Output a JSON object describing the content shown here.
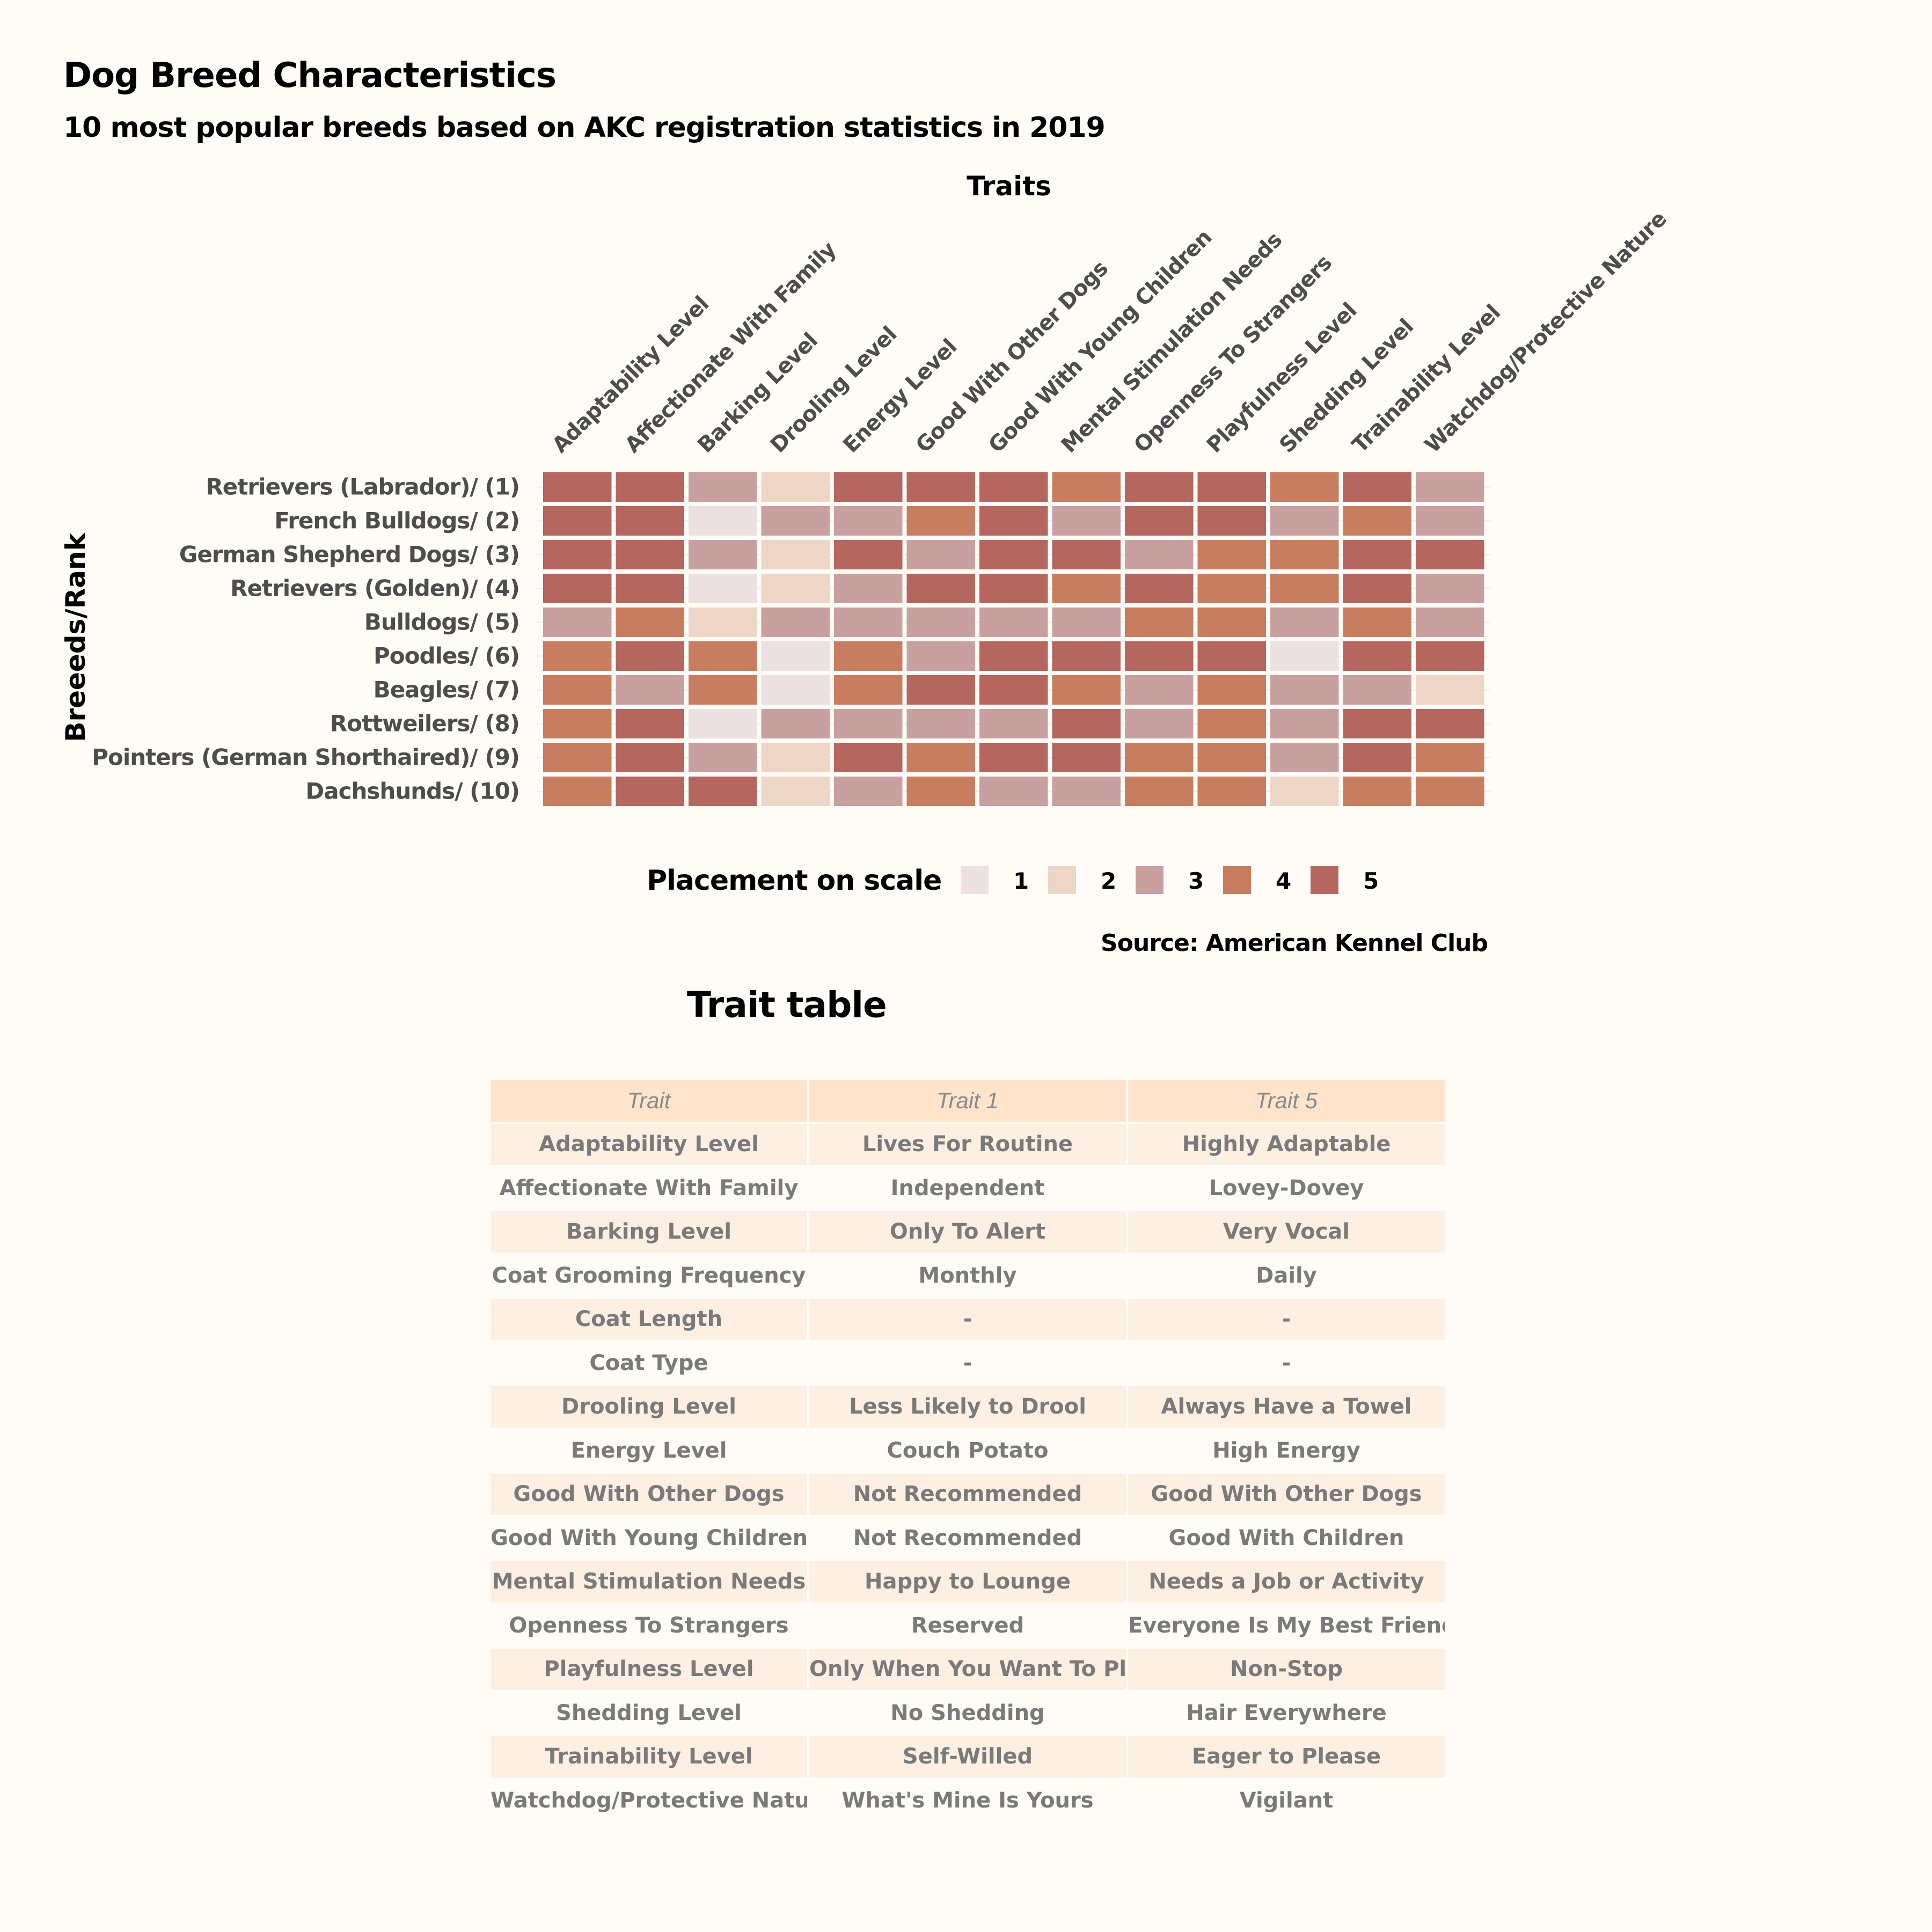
{
  "title": "Dog Breed Characteristics",
  "subtitle": "10 most popular breeds based on AKC registration statistics in 2019",
  "chart_data": {
    "type": "heatmap",
    "x_title": "Traits",
    "y_title": "Breeeds/Rank",
    "x": [
      "Adaptability Level",
      "Affectionate With Family",
      "Barking Level",
      "Drooling Level",
      "Energy Level",
      "Good With Other Dogs",
      "Good With Young Children",
      "Mental Stimulation Needs",
      "Openness To Strangers",
      "Playfulness Level",
      "Shedding Level",
      "Trainability Level",
      "Watchdog/Protective Nature"
    ],
    "y": [
      "Retrievers (Labrador)/ (1)",
      "French Bulldogs/ (2)",
      "German Shepherd Dogs/ (3)",
      "Retrievers (Golden)/ (4)",
      "Bulldogs/ (5)",
      "Poodles/ (6)",
      "Beagles/ (7)",
      "Rottweilers/ (8)",
      "Pointers (German Shorthaired)/ (9)",
      "Dachshunds/ (10)"
    ],
    "values": [
      [
        5,
        5,
        3,
        2,
        5,
        5,
        5,
        4,
        5,
        5,
        4,
        5,
        3
      ],
      [
        5,
        5,
        1,
        3,
        3,
        4,
        5,
        3,
        5,
        5,
        3,
        4,
        3
      ],
      [
        5,
        5,
        3,
        2,
        5,
        3,
        5,
        5,
        3,
        4,
        4,
        5,
        5
      ],
      [
        5,
        5,
        1,
        2,
        3,
        5,
        5,
        4,
        5,
        4,
        4,
        5,
        3
      ],
      [
        3,
        4,
        2,
        3,
        3,
        3,
        3,
        3,
        4,
        4,
        3,
        4,
        3
      ],
      [
        4,
        5,
        4,
        1,
        4,
        3,
        5,
        5,
        5,
        5,
        1,
        5,
        5
      ],
      [
        4,
        3,
        4,
        1,
        4,
        5,
        5,
        4,
        3,
        4,
        3,
        3,
        2
      ],
      [
        4,
        5,
        1,
        3,
        3,
        3,
        3,
        5,
        3,
        4,
        3,
        5,
        5
      ],
      [
        4,
        5,
        3,
        2,
        5,
        4,
        5,
        5,
        4,
        4,
        3,
        5,
        4
      ],
      [
        4,
        5,
        5,
        2,
        3,
        4,
        3,
        3,
        4,
        4,
        2,
        4,
        4
      ]
    ],
    "legend": {
      "title": "Placement on scale",
      "levels": [
        "1",
        "2",
        "3",
        "4",
        "5"
      ],
      "colors": [
        "#ebe1e1",
        "#eed6c7",
        "#c9a0a0",
        "#c97d60",
        "#b5665f"
      ],
      "placement": "bottom"
    },
    "caption": "Source: American Kennel Club"
  },
  "table": {
    "title": "Trait table",
    "headers": [
      "Trait",
      "Trait 1",
      "Trait 5"
    ],
    "rows": [
      [
        "Adaptability Level",
        "Lives For Routine",
        "Highly Adaptable"
      ],
      [
        "Affectionate With Family",
        "Independent",
        "Lovey-Dovey"
      ],
      [
        "Barking Level",
        "Only To Alert",
        "Very Vocal"
      ],
      [
        "Coat Grooming Frequency",
        "Monthly",
        "Daily"
      ],
      [
        "Coat Length",
        "-",
        "-"
      ],
      [
        "Coat Type",
        "-",
        "-"
      ],
      [
        "Drooling Level",
        "Less Likely to Drool",
        "Always Have a Towel"
      ],
      [
        "Energy Level",
        "Couch Potato",
        "High Energy"
      ],
      [
        "Good With Other Dogs",
        "Not Recommended",
        "Good With Other Dogs"
      ],
      [
        "Good With Young Children",
        "Not Recommended",
        "Good With Children"
      ],
      [
        "Mental Stimulation Needs",
        "Happy to Lounge",
        "Needs a Job or Activity"
      ],
      [
        "Openness To Strangers",
        "Reserved",
        "Everyone Is My Best Friend"
      ],
      [
        "Playfulness Level",
        "Only When You Want To Play",
        "Non-Stop"
      ],
      [
        "Shedding Level",
        "No Shedding",
        "Hair Everywhere"
      ],
      [
        "Trainability Level",
        "Self-Willed",
        "Eager to Please"
      ],
      [
        "Watchdog/Protective Nature",
        "What's Mine Is Yours",
        "Vigilant"
      ]
    ]
  }
}
